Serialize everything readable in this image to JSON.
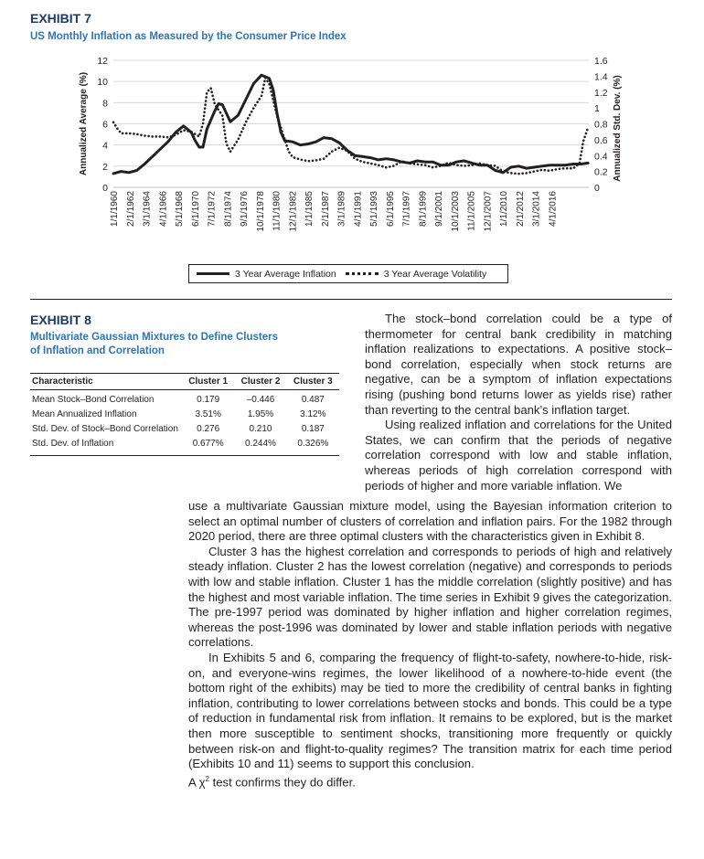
{
  "exhibit7": {
    "label": "EXHIBIT 7",
    "title": "US Monthly Inflation as Measured by the Consumer Price Index",
    "chart_data": {
      "type": "line",
      "ylabel_left": "Annualized Average (%)",
      "ylabel_right": "Annualized Std. Dev. (%)",
      "ylim_left": [
        0,
        12
      ],
      "ylim_right": [
        0,
        1.6
      ],
      "yticks_left": [
        "0",
        "2",
        "4",
        "6",
        "8",
        "10",
        "12"
      ],
      "yticks_right": [
        "0",
        "0.2",
        "0.4",
        "0.6",
        "0.8",
        "1",
        "1.2",
        "1.4",
        "1.6"
      ],
      "xticks": [
        "1/1/1960",
        "2/1/1962",
        "3/1/1964",
        "4/1/1966",
        "5/1/1968",
        "6/1/1970",
        "7/1/1972",
        "8/1/1974",
        "9/1/1976",
        "10/1/1978",
        "11/1/1980",
        "12/1/1982",
        "1/1/1985",
        "2/1/1987",
        "3/1/1989",
        "4/1/1991",
        "5/1/1993",
        "6/1/1995",
        "7/1/1997",
        "8/1/1999",
        "9/1/2001",
        "10/1/2003",
        "11/1/2005",
        "12/1/2007",
        "1/1/2010",
        "2/1/2012",
        "3/1/2014",
        "4/1/2016"
      ],
      "x_start": 1960.0,
      "x_end": 2021.0,
      "legend_position": "bottom",
      "series": [
        {
          "name": "3 Year Average Inflation",
          "axis": "left",
          "style": "solid",
          "x": [
            1960,
            1961,
            1962,
            1963,
            1964,
            1965,
            1966,
            1967,
            1968,
            1969,
            1970,
            1970.5,
            1971,
            1971.5,
            1972,
            1973,
            1973.5,
            1974,
            1975,
            1976,
            1977,
            1978,
            1979,
            1980,
            1980.5,
            1981,
            1981.5,
            1982,
            1983,
            1984,
            1985,
            1986,
            1987,
            1988,
            1989,
            1990,
            1991,
            1992,
            1993,
            1994,
            1995,
            1996,
            1997,
            1998,
            1999,
            2000,
            2001,
            2002,
            2003,
            2004,
            2005,
            2006,
            2007,
            2008,
            2009,
            2010,
            2011,
            2012,
            2013,
            2014,
            2015,
            2016,
            2017,
            2018,
            2019,
            2020,
            2020.9
          ],
          "y": [
            1.3,
            1.5,
            1.4,
            1.6,
            2.2,
            2.9,
            3.6,
            4.3,
            5.2,
            5.8,
            5.2,
            4.4,
            3.8,
            3.8,
            5.5,
            7.2,
            7.9,
            7.8,
            6.2,
            6.8,
            8.3,
            9.8,
            10.6,
            10.3,
            9.2,
            7.0,
            5.2,
            4.4,
            4.3,
            4.0,
            4.1,
            4.3,
            4.7,
            4.6,
            4.2,
            3.5,
            3.0,
            2.9,
            2.8,
            2.6,
            2.7,
            2.6,
            2.4,
            2.3,
            2.5,
            2.4,
            2.4,
            2.1,
            2.1,
            2.4,
            2.5,
            2.3,
            2.1,
            2.1,
            1.6,
            1.4,
            1.9,
            2.0,
            1.8,
            1.9,
            2.0,
            2.1,
            2.1,
            2.1,
            2.2,
            2.2,
            2.3
          ]
        },
        {
          "name": "3 Year Average Volatility",
          "axis": "right",
          "style": "dotted",
          "x": [
            1960,
            1960.5,
            1961,
            1962,
            1963,
            1964,
            1965,
            1966,
            1967,
            1968,
            1969,
            1970,
            1971,
            1971.5,
            1972,
            1972.5,
            1973,
            1974,
            1974.5,
            1975,
            1976,
            1977,
            1978,
            1979,
            1979.5,
            1980,
            1980.5,
            1981,
            1982,
            1982.5,
            1983,
            1984,
            1985,
            1986,
            1987,
            1988,
            1989,
            1990,
            1991,
            1992,
            1993,
            1994,
            1995,
            1996,
            1997,
            1998,
            1999,
            2000,
            2001,
            2002,
            2003,
            2004,
            2005,
            2006,
            2007,
            2008,
            2009,
            2010,
            2011,
            2012,
            2013,
            2014,
            2015,
            2016,
            2017,
            2018,
            2019,
            2019.8,
            2020.3,
            2020.9
          ],
          "y": [
            0.82,
            0.74,
            0.68,
            0.68,
            0.67,
            0.65,
            0.64,
            0.64,
            0.63,
            0.66,
            0.72,
            0.7,
            0.64,
            0.8,
            1.2,
            1.25,
            1.05,
            0.9,
            0.55,
            0.45,
            0.6,
            0.82,
            1.0,
            1.15,
            1.38,
            1.3,
            1.1,
            0.9,
            0.6,
            0.45,
            0.38,
            0.35,
            0.33,
            0.34,
            0.36,
            0.45,
            0.5,
            0.46,
            0.36,
            0.32,
            0.3,
            0.28,
            0.25,
            0.27,
            0.33,
            0.3,
            0.29,
            0.28,
            0.25,
            0.27,
            0.31,
            0.28,
            0.27,
            0.28,
            0.3,
            0.28,
            0.27,
            0.2,
            0.18,
            0.17,
            0.18,
            0.2,
            0.22,
            0.21,
            0.23,
            0.24,
            0.24,
            0.3,
            0.58,
            0.75
          ]
        }
      ]
    }
  },
  "exhibit8": {
    "label": "EXHIBIT 8",
    "title_line1": "Multivariate Gaussian Mixtures to Define Clusters",
    "title_line2": "of Inflation and Correlation",
    "columns": [
      "Characteristic",
      "Cluster 1",
      "Cluster 2",
      "Cluster 3"
    ],
    "rows": [
      {
        "label": "Mean Stock–Bond Correlation",
        "c1": "0.179",
        "c2": "–0.446",
        "c3": "0.487"
      },
      {
        "label": "Mean Annualized Inflation",
        "c1": "3.51%",
        "c2": "1.95%",
        "c3": "3.12%"
      },
      {
        "label": "Std. Dev. of Stock–Bond Correlation",
        "c1": "0.276",
        "c2": "0.210",
        "c3": "0.187"
      },
      {
        "label": "Std. Dev. of Inflation",
        "c1": "0.677%",
        "c2": "0.244%",
        "c3": "0.326%"
      }
    ]
  },
  "text": {
    "right_p1": "The stock–bond correlation could be a type of thermometer for central bank credibility in matching inflation realizations to expectations. A positive stock–bond correlation, especially when stock returns are negative, can be a symptom of inflation expectations rising (pushing bond returns lower as yields rise) rather than reverting to the central bank’s inflation target.",
    "right_p2": "Using realized inflation and correlations for the United States, we can confirm that the periods of negative correlation correspond with low and stable inflation, whereas periods of high correlation correspond with periods of higher and more variable inflation. We",
    "p2_cont": "use a multivariate Gaussian mixture model, using the Bayesian information criterion to select an optimal number of clusters of correlation and inflation pairs. For the 1982 through 2020 period, there are three optimal clusters with the characteristics given in Exhibit 8.",
    "p3": "Cluster 3 has the highest correlation and corresponds to periods of high and relatively steady inflation. Cluster 2 has the lowest correlation (negative) and corresponds to periods with low and stable inflation. Cluster 1 has the middle correlation (slightly positive) and has the highest and most variable inflation. The time series in Exhibit 9 gives the categorization. The pre-1997 period was dominated by higher inflation and higher correlation regimes, whereas the post-1996 was dominated by lower and stable inflation periods with negative correlations.",
    "p4": "In Exhibits 5 and 6, comparing the frequency of flight-to-safety, nowhere-to-hide, risk-on, and everyone-wins regimes, the lower likelihood of a nowhere-to-hide event (the bottom right of the exhibits) may be tied to more the credibility of central banks in fighting inflation, contributing to lower correlations between stocks and bonds. This could be a type of reduction in fundamental risk from inflation. It remains to be explored, but is the market then more susceptible to sentiment shocks, transitioning more frequently or quickly between risk-on and flight-to-quality regimes? The transition matrix for each time period (Exhibits 10 and 11) seems to support this conclusion.",
    "p4_last_prefix": "A",
    "p4_last_chi": "χ",
    "p4_last_sup": "2",
    "p4_last_suffix": " test confirms they do differ."
  }
}
